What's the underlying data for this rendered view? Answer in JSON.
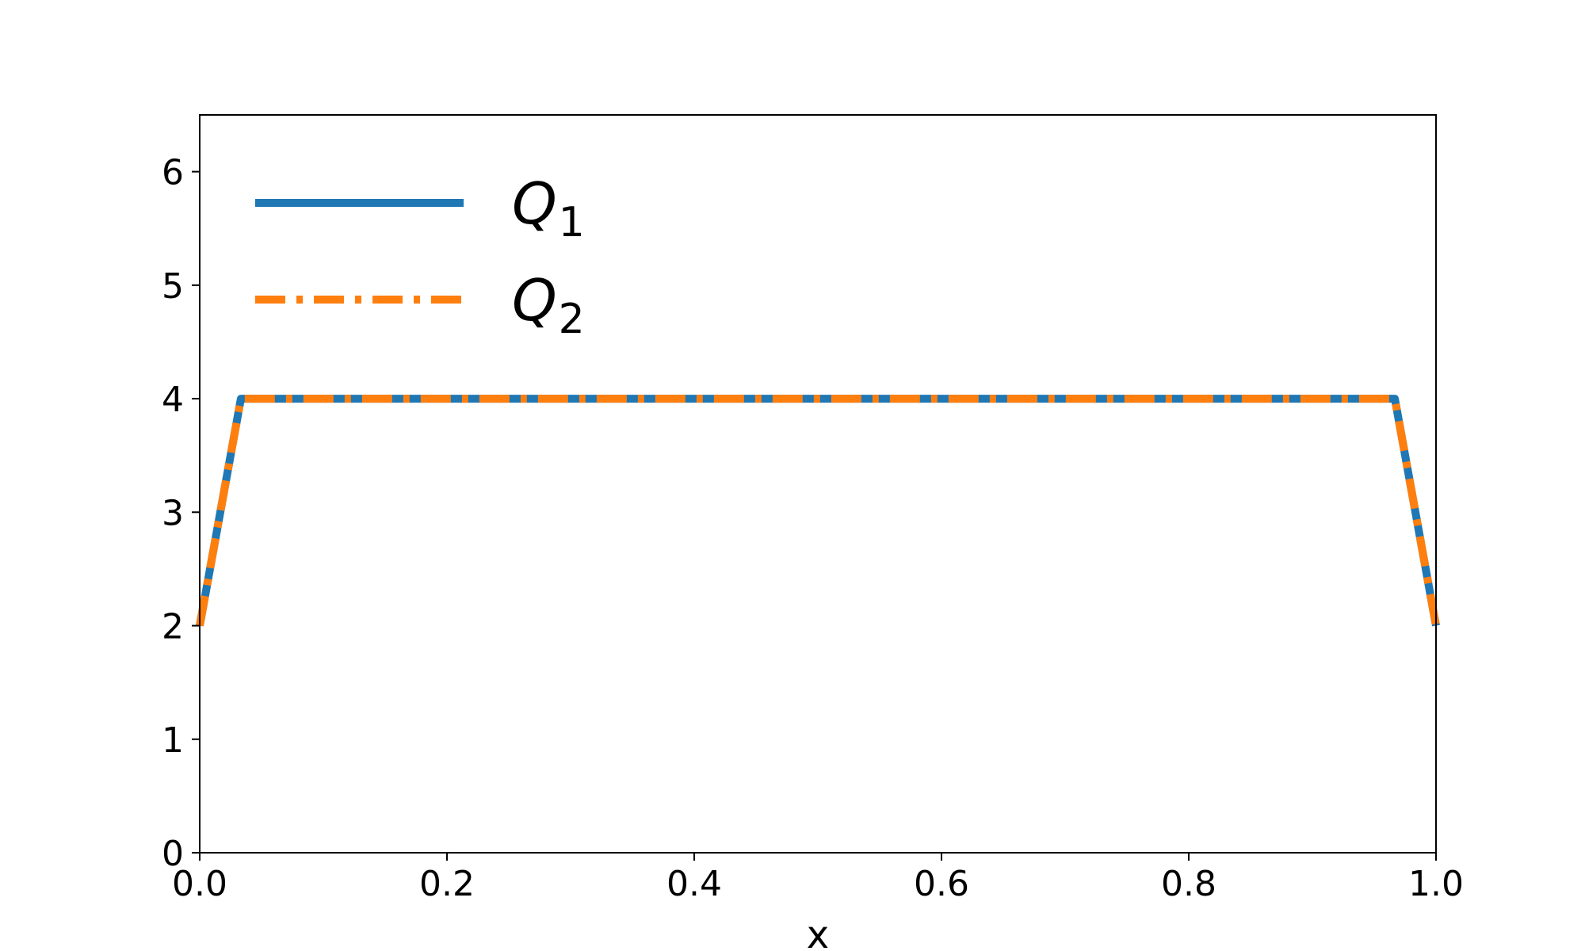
{
  "chart_data": {
    "type": "line",
    "title": "",
    "xlabel": "x",
    "ylabel": "",
    "xlim": [
      0.0,
      1.0
    ],
    "ylim": [
      0,
      6.5
    ],
    "xticks": [
      "0.0",
      "0.2",
      "0.4",
      "0.6",
      "0.8",
      "1.0"
    ],
    "yticks": [
      "0",
      "1",
      "2",
      "3",
      "4",
      "5",
      "6"
    ],
    "grid": false,
    "legend_position": "upper-left",
    "series": [
      {
        "name": "Q",
        "subscript": "1",
        "color": "#1f77b4",
        "style": "solid",
        "x": [
          0.0,
          0.0333,
          0.9667,
          1.0
        ],
        "y": [
          2,
          4,
          4,
          2
        ]
      },
      {
        "name": "Q",
        "subscript": "2",
        "color": "#ff7f0e",
        "style": "dashdot",
        "x": [
          0.0,
          0.0333,
          0.9667,
          1.0
        ],
        "y": [
          2,
          4,
          4,
          2
        ]
      }
    ]
  }
}
